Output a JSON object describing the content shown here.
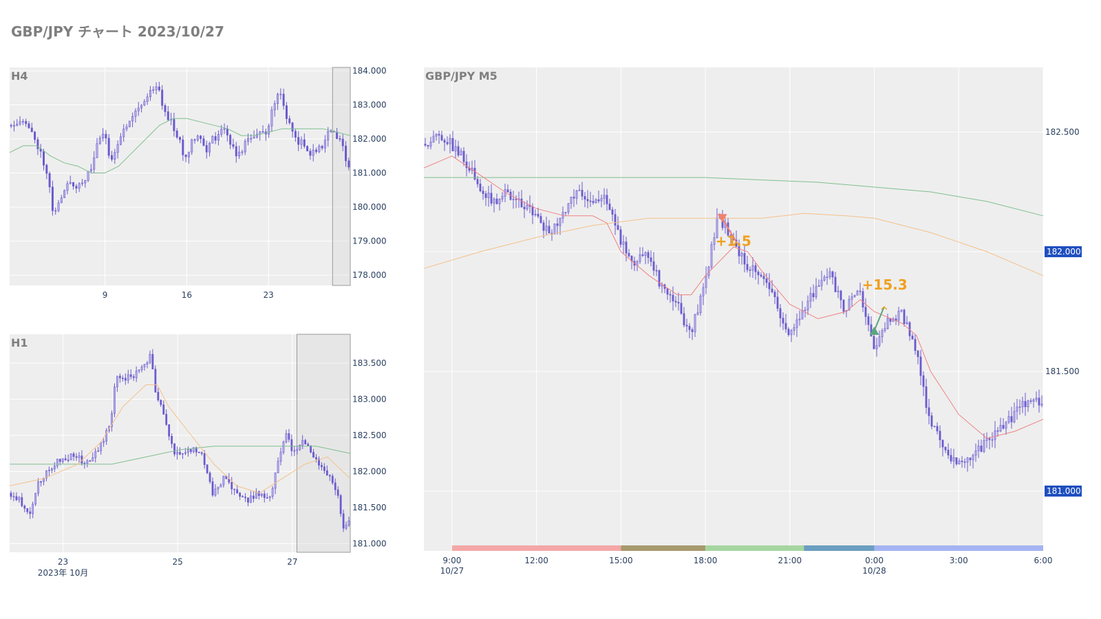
{
  "page": {
    "title": "GBP/JPY チャート 2023/10/27"
  },
  "colors": {
    "candle": "#6a5acd",
    "plot_bg": "#eeeeee",
    "grid": "#ffffff",
    "ma_green": "#7fbf8f",
    "ma_orange": "#f5c08a",
    "ma_red": "#f08080",
    "price_badge": "#1f4fbf",
    "annotation": "#f0a020",
    "sell_marker": "#f08070",
    "buy_marker": "#5aa57f"
  },
  "chart_data": [
    {
      "id": "h4",
      "type": "candlestick",
      "label": "H4",
      "ylim": [
        177.7,
        184.1
      ],
      "y_ticks": [
        {
          "v": 184.0,
          "t": "184.000"
        },
        {
          "v": 183.0,
          "t": "183.000"
        },
        {
          "v": 182.0,
          "t": "182.000"
        },
        {
          "v": 181.0,
          "t": "181.000"
        },
        {
          "v": 180.0,
          "t": "180.000"
        },
        {
          "v": 179.0,
          "t": "179.000"
        },
        {
          "v": 178.0,
          "t": "178.000"
        }
      ],
      "x_range": [
        0,
        25
      ],
      "x_ticks": [
        {
          "v": 7,
          "t": "9"
        },
        {
          "v": 13,
          "t": "16"
        },
        {
          "v": 19,
          "t": "23"
        }
      ],
      "highlight_x": [
        23.7,
        25
      ],
      "path": [
        [
          0,
          182.4
        ],
        [
          1,
          182.6
        ],
        [
          2,
          182.0
        ],
        [
          3,
          180.9
        ],
        [
          3.2,
          179.8
        ],
        [
          4,
          180.3
        ],
        [
          4.5,
          180.8
        ],
        [
          5,
          180.6
        ],
        [
          6,
          181.0
        ],
        [
          6.5,
          181.8
        ],
        [
          7,
          182.2
        ],
        [
          7.5,
          181.4
        ],
        [
          8,
          181.8
        ],
        [
          9,
          182.7
        ],
        [
          10,
          183.1
        ],
        [
          10.5,
          183.5
        ],
        [
          11,
          183.5
        ],
        [
          11.5,
          182.8
        ],
        [
          12,
          182.5
        ],
        [
          12.5,
          182.0
        ],
        [
          13,
          181.4
        ],
        [
          13.5,
          182.0
        ],
        [
          14,
          182.2
        ],
        [
          14.5,
          181.6
        ],
        [
          15,
          182.0
        ],
        [
          16,
          182.3
        ],
        [
          16.5,
          181.7
        ],
        [
          17,
          181.5
        ],
        [
          17.5,
          182.0
        ],
        [
          18,
          182.1
        ],
        [
          19,
          182.2
        ],
        [
          19.5,
          183.1
        ],
        [
          20,
          183.3
        ],
        [
          20.5,
          182.6
        ],
        [
          21,
          182.0
        ],
        [
          21.5,
          181.9
        ],
        [
          22,
          181.6
        ],
        [
          22.5,
          181.6
        ],
        [
          23,
          181.8
        ],
        [
          23.7,
          182.3
        ],
        [
          24,
          182.1
        ],
        [
          24.5,
          181.8
        ],
        [
          25,
          181.2
        ]
      ],
      "ma": [
        {
          "name": "ma-green",
          "color": "#7fbf8f",
          "pts": [
            [
              0,
              181.6
            ],
            [
              1,
              181.8
            ],
            [
              2,
              181.8
            ],
            [
              3,
              181.5
            ],
            [
              4,
              181.3
            ],
            [
              5,
              181.2
            ],
            [
              6,
              181.0
            ],
            [
              7,
              181.0
            ],
            [
              8,
              181.2
            ],
            [
              9,
              181.6
            ],
            [
              10,
              182.0
            ],
            [
              11,
              182.4
            ],
            [
              12,
              182.6
            ],
            [
              13,
              182.6
            ],
            [
              14,
              182.5
            ],
            [
              15,
              182.4
            ],
            [
              16,
              182.3
            ],
            [
              17,
              182.1
            ],
            [
              18,
              182.1
            ],
            [
              19,
              182.2
            ],
            [
              20,
              182.3
            ],
            [
              21,
              182.3
            ],
            [
              22,
              182.3
            ],
            [
              23,
              182.3
            ],
            [
              24,
              182.2
            ],
            [
              25,
              182.1
            ]
          ]
        }
      ]
    },
    {
      "id": "h1",
      "type": "candlestick",
      "label": "H1",
      "ylim": [
        180.88,
        183.9
      ],
      "y_ticks": [
        {
          "v": 183.5,
          "t": "183.500"
        },
        {
          "v": 183.0,
          "t": "183.000"
        },
        {
          "v": 182.5,
          "t": "182.500"
        },
        {
          "v": 182.0,
          "t": "182.000"
        },
        {
          "v": 181.5,
          "t": "181.500"
        },
        {
          "v": 181.0,
          "t": "181.000"
        }
      ],
      "x_range": [
        0,
        30
      ],
      "x_ticks": [
        {
          "v": 4.7,
          "t": "23"
        },
        {
          "v": 14.8,
          "t": "25"
        },
        {
          "v": 24.9,
          "t": "27"
        }
      ],
      "x_subtitle": "2023年 10月",
      "highlight_x": [
        25.3,
        30
      ],
      "path": [
        [
          0,
          181.7
        ],
        [
          1,
          181.6
        ],
        [
          2,
          181.4
        ],
        [
          2.5,
          181.8
        ],
        [
          3,
          181.9
        ],
        [
          4,
          182.1
        ],
        [
          5,
          182.2
        ],
        [
          6,
          182.2
        ],
        [
          7,
          182.1
        ],
        [
          8,
          182.3
        ],
        [
          9,
          182.7
        ],
        [
          9.5,
          183.3
        ],
        [
          10,
          183.3
        ],
        [
          11,
          183.3
        ],
        [
          12,
          183.5
        ],
        [
          12.5,
          183.6
        ],
        [
          13,
          183.1
        ],
        [
          14,
          182.6
        ],
        [
          14.5,
          182.3
        ],
        [
          15,
          182.2
        ],
        [
          16,
          182.3
        ],
        [
          17,
          182.3
        ],
        [
          17.5,
          182.0
        ],
        [
          18,
          181.7
        ],
        [
          19,
          181.9
        ],
        [
          20,
          181.7
        ],
        [
          21,
          181.6
        ],
        [
          22,
          181.7
        ],
        [
          23,
          181.6
        ],
        [
          24,
          182.3
        ],
        [
          24.5,
          182.5
        ],
        [
          25,
          182.3
        ],
        [
          26,
          182.4
        ],
        [
          27,
          182.2
        ],
        [
          28,
          182.0
        ],
        [
          29,
          181.7
        ],
        [
          29.5,
          181.2
        ],
        [
          30,
          181.3
        ]
      ],
      "ma": [
        {
          "name": "ma-green",
          "color": "#7fbf8f",
          "pts": [
            [
              0,
              182.1
            ],
            [
              3,
              182.1
            ],
            [
              6,
              182.1
            ],
            [
              9,
              182.1
            ],
            [
              12,
              182.2
            ],
            [
              15,
              182.3
            ],
            [
              18,
              182.35
            ],
            [
              21,
              182.35
            ],
            [
              24,
              182.35
            ],
            [
              27,
              182.35
            ],
            [
              30,
              182.25
            ]
          ]
        },
        {
          "name": "ma-orange",
          "color": "#f5c08a",
          "pts": [
            [
              0,
              181.8
            ],
            [
              3,
              181.9
            ],
            [
              6,
              182.1
            ],
            [
              8,
              182.4
            ],
            [
              10,
              182.9
            ],
            [
              12,
              183.2
            ],
            [
              13,
              183.2
            ],
            [
              14,
              182.9
            ],
            [
              16,
              182.5
            ],
            [
              18,
              182.1
            ],
            [
              20,
              181.8
            ],
            [
              22,
              181.7
            ],
            [
              24,
              181.9
            ],
            [
              26,
              182.1
            ],
            [
              28,
              182.2
            ],
            [
              30,
              181.9
            ]
          ]
        }
      ]
    },
    {
      "id": "m5",
      "type": "candlestick",
      "label": "GBP/JPY M5",
      "ylim": [
        180.75,
        182.77
      ],
      "y_ticks": [
        {
          "v": 182.5,
          "t": "182.500"
        },
        {
          "v": 181.5,
          "t": "181.500"
        }
      ],
      "price_badges": [
        {
          "v": 182.0,
          "t": "182.000"
        },
        {
          "v": 181.0,
          "t": "181.000"
        }
      ],
      "x_range": [
        0,
        22
      ],
      "x_ticks": [
        {
          "v": 1,
          "t": "9:00",
          "sub": "10/27"
        },
        {
          "v": 4,
          "t": "12:00"
        },
        {
          "v": 7,
          "t": "15:00"
        },
        {
          "v": 10,
          "t": "18:00"
        },
        {
          "v": 13,
          "t": "21:00"
        },
        {
          "v": 16,
          "t": "0:00",
          "sub": "10/28"
        },
        {
          "v": 19,
          "t": "3:00"
        },
        {
          "v": 22,
          "t": "6:00"
        }
      ],
      "sessions": [
        {
          "from": 1,
          "to": 7,
          "color": "#f4a7a7"
        },
        {
          "from": 7,
          "to": 10,
          "color": "#a89a6e"
        },
        {
          "from": 10,
          "to": 13.5,
          "color": "#a6d6a0"
        },
        {
          "from": 13.5,
          "to": 16,
          "color": "#6b9fc0"
        },
        {
          "from": 16,
          "to": 22,
          "color": "#a4b4f2"
        }
      ],
      "path": [
        [
          0,
          182.45
        ],
        [
          0.5,
          182.48
        ],
        [
          1,
          182.45
        ],
        [
          1.5,
          182.38
        ],
        [
          2,
          182.28
        ],
        [
          2.5,
          182.2
        ],
        [
          3,
          182.25
        ],
        [
          3.5,
          182.2
        ],
        [
          4,
          182.15
        ],
        [
          4.5,
          182.08
        ],
        [
          5,
          182.15
        ],
        [
          5.5,
          182.25
        ],
        [
          6,
          182.22
        ],
        [
          6.5,
          182.23
        ],
        [
          7,
          182.05
        ],
        [
          7.5,
          181.95
        ],
        [
          8,
          182.0
        ],
        [
          8.5,
          181.85
        ],
        [
          9,
          181.8
        ],
        [
          9.5,
          181.65
        ],
        [
          10,
          181.85
        ],
        [
          10.5,
          182.15
        ],
        [
          11,
          182.05
        ],
        [
          11.5,
          181.95
        ],
        [
          12,
          181.9
        ],
        [
          12.5,
          181.8
        ],
        [
          13,
          181.65
        ],
        [
          13.5,
          181.75
        ],
        [
          14,
          181.85
        ],
        [
          14.5,
          181.9
        ],
        [
          15,
          181.75
        ],
        [
          15.5,
          181.85
        ],
        [
          16,
          181.6
        ],
        [
          16.5,
          181.7
        ],
        [
          17,
          181.75
        ],
        [
          17.5,
          181.6
        ],
        [
          18,
          181.3
        ],
        [
          18.5,
          181.2
        ],
        [
          19,
          181.1
        ],
        [
          19.5,
          181.15
        ],
        [
          20,
          181.2
        ],
        [
          20.5,
          181.25
        ],
        [
          21,
          181.32
        ],
        [
          21.5,
          181.38
        ],
        [
          22,
          181.38
        ]
      ],
      "ma": [
        {
          "name": "ma-green",
          "color": "#7fbf8f",
          "pts": [
            [
              0,
              182.31
            ],
            [
              2,
              182.31
            ],
            [
              4,
              182.31
            ],
            [
              6,
              182.31
            ],
            [
              8,
              182.31
            ],
            [
              10,
              182.31
            ],
            [
              12,
              182.3
            ],
            [
              14,
              182.29
            ],
            [
              16,
              182.27
            ],
            [
              18,
              182.25
            ],
            [
              20,
              182.21
            ],
            [
              22,
              182.15
            ]
          ]
        },
        {
          "name": "ma-orange",
          "color": "#f5c08a",
          "pts": [
            [
              0,
              181.93
            ],
            [
              2,
              182.0
            ],
            [
              4,
              182.06
            ],
            [
              6,
              182.11
            ],
            [
              8,
              182.14
            ],
            [
              10,
              182.14
            ],
            [
              12,
              182.14
            ],
            [
              13.5,
              182.16
            ],
            [
              15,
              182.15
            ],
            [
              16,
              182.14
            ],
            [
              18,
              182.08
            ],
            [
              20,
              182.0
            ],
            [
              22,
              181.9
            ]
          ]
        },
        {
          "name": "ma-red",
          "color": "#f08080",
          "pts": [
            [
              0,
              182.35
            ],
            [
              1,
              182.4
            ],
            [
              2,
              182.32
            ],
            [
              3,
              182.24
            ],
            [
              4,
              182.18
            ],
            [
              5,
              182.15
            ],
            [
              6,
              182.15
            ],
            [
              6.5,
              182.12
            ],
            [
              7,
              182.0
            ],
            [
              8,
              181.9
            ],
            [
              9,
              181.82
            ],
            [
              9.5,
              181.82
            ],
            [
              10,
              181.9
            ],
            [
              11,
              182.02
            ],
            [
              11.5,
              182.0
            ],
            [
              12,
              181.92
            ],
            [
              13,
              181.78
            ],
            [
              14,
              181.72
            ],
            [
              15,
              181.75
            ],
            [
              15.5,
              181.8
            ],
            [
              16,
              181.75
            ],
            [
              17,
              181.7
            ],
            [
              17.5,
              181.65
            ],
            [
              18,
              181.5
            ],
            [
              19,
              181.32
            ],
            [
              20,
              181.22
            ],
            [
              21,
              181.25
            ],
            [
              22,
              181.3
            ]
          ]
        }
      ],
      "trades": [
        {
          "dir": "sell",
          "x": 10.6,
          "y": 182.14,
          "ex": 11.1,
          "ey": 182.04,
          "label": "+1.5"
        },
        {
          "dir": "buy",
          "x": 16,
          "y": 181.67,
          "ex": 16.35,
          "ey": 181.77,
          "label": "+15.3"
        }
      ]
    }
  ]
}
